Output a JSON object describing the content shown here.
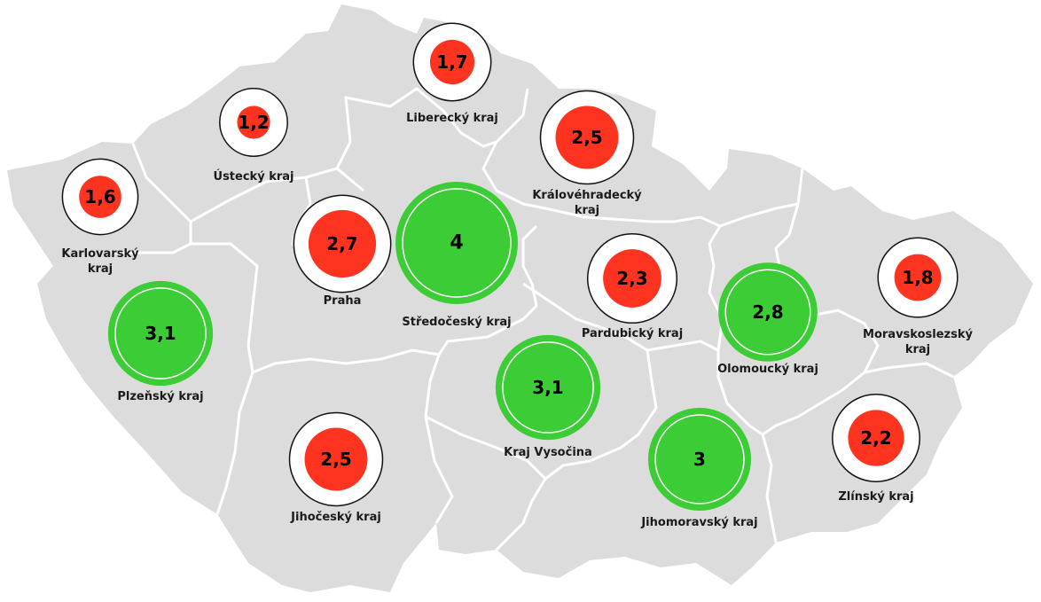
{
  "colors": {
    "land": "#dcdcdc",
    "border": "#ffffff",
    "high": "#3ccc35",
    "low": "#ff3420",
    "ring": "#ffffff",
    "outline": "#111111"
  },
  "regions": [
    {
      "id": "karlovarsky",
      "label_lines": [
        "Karlovarský",
        "kraj"
      ],
      "value": 1.6,
      "display": "1,6"
    },
    {
      "id": "ustecky",
      "label_lines": [
        "Ústecký kraj"
      ],
      "value": 1.2,
      "display": "1,2"
    },
    {
      "id": "liberecky",
      "label_lines": [
        "Liberecký kraj"
      ],
      "value": 1.7,
      "display": "1,7"
    },
    {
      "id": "kralovehradecky",
      "label_lines": [
        "Královéhradecký",
        "kraj"
      ],
      "value": 2.5,
      "display": "2,5"
    },
    {
      "id": "praha",
      "label_lines": [
        "Praha"
      ],
      "value": 2.7,
      "display": "2,7"
    },
    {
      "id": "stredocesky",
      "label_lines": [
        "Středočeský kraj"
      ],
      "value": 4,
      "display": "4"
    },
    {
      "id": "pardubicky",
      "label_lines": [
        "Pardubický kraj"
      ],
      "value": 2.3,
      "display": "2,3"
    },
    {
      "id": "olomoucky",
      "label_lines": [
        "Olomoucký kraj"
      ],
      "value": 2.8,
      "display": "2,8"
    },
    {
      "id": "moravskoslezsky",
      "label_lines": [
        "Moravskoslezský",
        "kraj"
      ],
      "value": 1.8,
      "display": "1,8"
    },
    {
      "id": "plzensky",
      "label_lines": [
        "Plzeňský kraj"
      ],
      "value": 3.1,
      "display": "3,1"
    },
    {
      "id": "vysocina",
      "label_lines": [
        "Kraj Vysočina"
      ],
      "value": 3.1,
      "display": "3,1"
    },
    {
      "id": "jihocesky",
      "label_lines": [
        "Jihočeský kraj"
      ],
      "value": 2.5,
      "display": "2,5"
    },
    {
      "id": "jihomoravsky",
      "label_lines": [
        "Jihomoravský kraj"
      ],
      "value": 3,
      "display": "3"
    },
    {
      "id": "zlinsky",
      "label_lines": [
        "Zlínský kraj"
      ],
      "value": 2.2,
      "display": "2,2"
    }
  ]
}
